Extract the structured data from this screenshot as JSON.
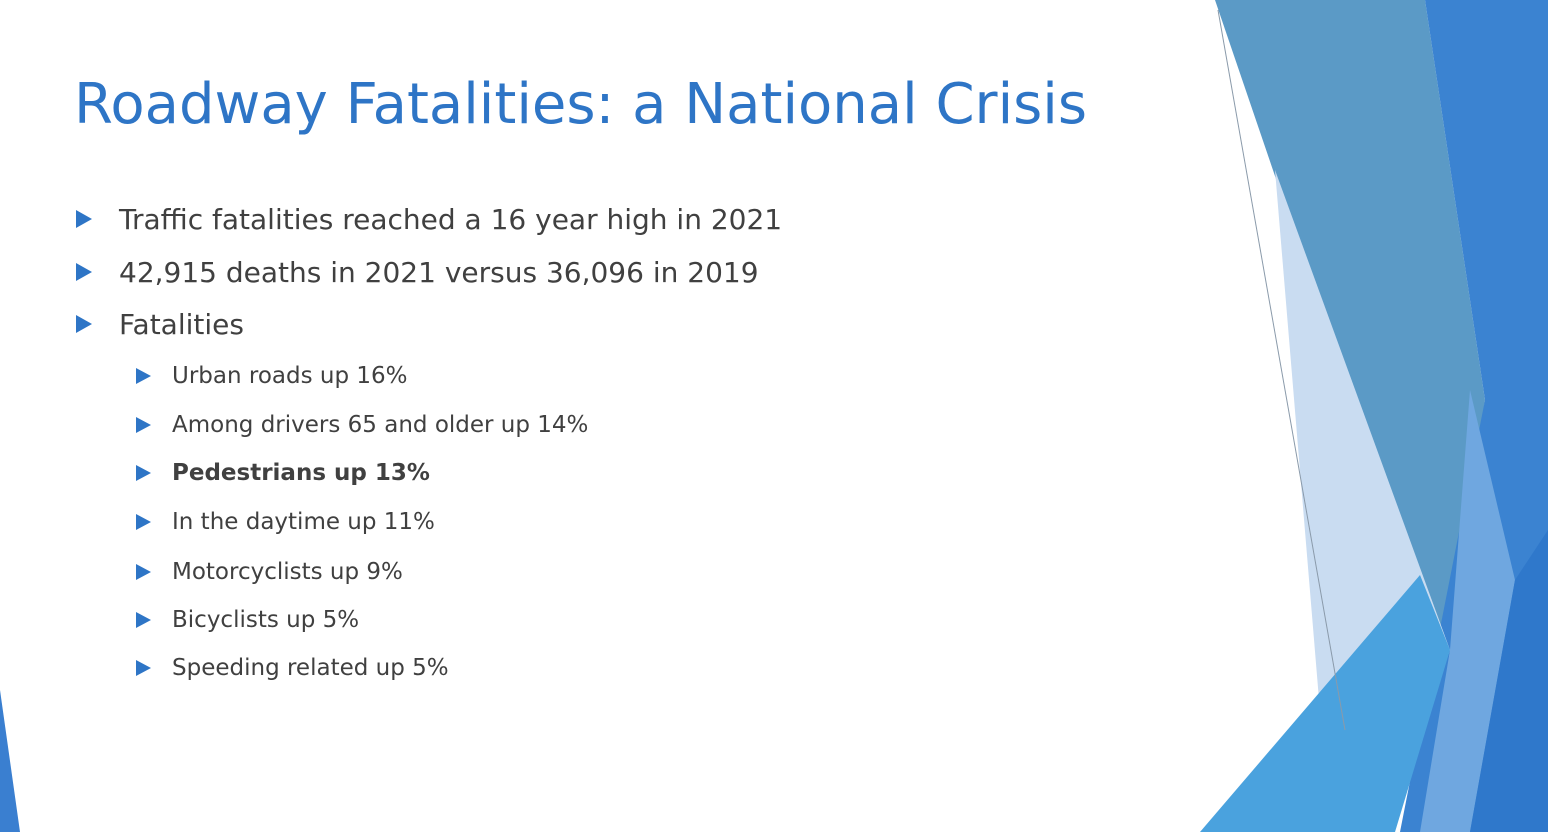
{
  "title": "Roadway Fatalities: a National Crisis",
  "bullets": [
    "Traffic fatalities reached a 16 year high in 2021",
    "42,915 deaths in 2021 versus 36,096 in 2019",
    "Fatalities"
  ],
  "sub_bullets": [
    "Urban roads up 16%",
    "Among drivers 65 and older up 14%",
    "Pedestrians up 13%",
    "In the daytime up 11%",
    "Motorcyclists up 9%",
    "Bicyclists up 5%",
    "Speeding related up 5%"
  ]
}
